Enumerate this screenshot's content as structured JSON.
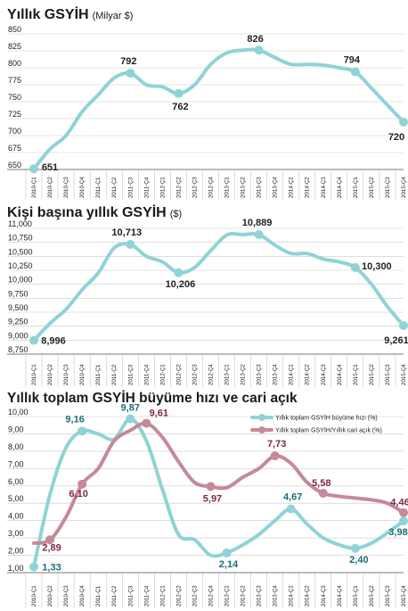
{
  "colors": {
    "teal": "#8fd3d6",
    "mauve": "#c68a97",
    "teal_text": "#1c6d73",
    "mauve_text": "#7a2a44",
    "dark": "#222222"
  },
  "chart_data": [
    {
      "type": "line",
      "title": "Yıllık GSYİH",
      "unit": "(Milyar $)",
      "categories": [
        "2010-Ç1",
        "2010-Ç2",
        "2010-Ç3",
        "2010-Ç4",
        "2011-Ç1",
        "2011-Ç2",
        "2011-Ç3",
        "2011-Ç4",
        "2012-Ç1",
        "2012-Ç2",
        "2012-Ç3",
        "2012-Ç4",
        "2013-Ç1",
        "2013-Ç2",
        "2013-Ç3",
        "2013-Ç4",
        "2014-Ç1",
        "2014-Ç2",
        "2014-Ç3",
        "2014-Ç4",
        "2015-Ç1",
        "2015-Ç2",
        "2015-Ç3",
        "2015-Ç4"
      ],
      "yticks": [
        "850",
        "825",
        "800",
        "775",
        "750",
        "725",
        "700",
        "675",
        "650"
      ],
      "ylim": [
        650,
        850
      ],
      "series": [
        {
          "values": [
            651,
            680,
            700,
            735,
            760,
            785,
            792,
            775,
            772,
            762,
            775,
            805,
            822,
            826,
            826,
            815,
            805,
            805,
            804,
            800,
            794,
            770,
            745,
            720
          ],
          "labeled": {
            "0": "651",
            "6": "792",
            "9": "762",
            "14": "826",
            "20": "794",
            "23": "720"
          }
        }
      ]
    },
    {
      "type": "line",
      "title": "Kişi başına yıllık GSYİH",
      "unit": "($)",
      "categories": [
        "2010-Ç1",
        "2010-Ç2",
        "2010-Ç3",
        "2010-Ç4",
        "2011-Ç1",
        "2011-Ç2",
        "2011-Ç3",
        "2011-Ç4",
        "2012-Ç1",
        "2012-Ç2",
        "2012-Ç3",
        "2012-Ç4",
        "2013-Ç1",
        "2013-Ç2",
        "2013-Ç3",
        "2013-Ç4",
        "2014-Ç1",
        "2014-Ç2",
        "2014-Ç3",
        "2014-Ç4",
        "2015-Ç1",
        "2015-Ç2",
        "2015-Ç3",
        "2015-Ç4"
      ],
      "yticks": [
        "11,000",
        "10,750",
        "10,500",
        "10,250",
        "10,000",
        "9,750",
        "9,500",
        "9,250",
        "9,000",
        "8,750"
      ],
      "ylim": [
        8750,
        11000
      ],
      "series": [
        {
          "values": [
            8996,
            9300,
            9550,
            9900,
            10200,
            10650,
            10713,
            10500,
            10400,
            10206,
            10300,
            10600,
            10880,
            10889,
            10889,
            10700,
            10550,
            10550,
            10450,
            10400,
            10300,
            10000,
            9600,
            9261
          ],
          "labeled": {
            "0": "8,996",
            "6": "10,713",
            "9": "10,206",
            "14": "10,889",
            "20": "10,300",
            "23": "9,261"
          }
        }
      ]
    },
    {
      "type": "line",
      "title": "Yıllık toplam GSYİH büyüme hızı ve cari açık",
      "categories": [
        "2010-Ç1",
        "2010-Ç2",
        "2010-Ç3",
        "2010-Ç4",
        "2011-Ç1",
        "2011-Ç2",
        "2011-Ç3",
        "2011-Ç4",
        "2012-Ç1",
        "2012-Ç2",
        "2012-Ç3",
        "2012-Ç4",
        "2013-Ç1",
        "2013-Ç2",
        "2013-Ç3",
        "2013-Ç4",
        "2014-Ç1",
        "2014-Ç2",
        "2014-Ç3",
        "2014-Ç4",
        "2015-Ç1",
        "2015-Ç2",
        "2015-Ç3",
        "2015-Ç4"
      ],
      "yticks": [
        "10,00",
        "9,00",
        "8,00",
        "7,00",
        "6,00",
        "5,00",
        "4,00",
        "3,00",
        "2,00",
        "1,00"
      ],
      "ylim": [
        1,
        10
      ],
      "legend": [
        "Yıllık toplam GSYİH büyüme hızı (%)",
        "Yıllık toplam GSYİH/Yıllık cari açık (%)"
      ],
      "series": [
        {
          "name": "Yıllık toplam GSYİH büyüme hızı (%)",
          "values": [
            1.33,
            5.5,
            8.2,
            9.16,
            9.0,
            8.7,
            9.87,
            8.6,
            5.8,
            3.2,
            2.9,
            2.0,
            2.14,
            2.6,
            3.2,
            4.0,
            4.67,
            3.8,
            3.0,
            2.6,
            2.4,
            2.7,
            3.3,
            3.98
          ],
          "labeled": {
            "0": "1,33",
            "3": "9,16",
            "6": "9,87",
            "12": "2,14",
            "16": "4,67",
            "20": "2,40",
            "23": "3,98"
          }
        },
        {
          "name": "Yıllık toplam GSYİH/Yıllık cari açık (%)",
          "values": [
            2.7,
            2.89,
            4.2,
            6.1,
            7.0,
            8.6,
            9.2,
            9.61,
            8.8,
            7.4,
            6.2,
            5.97,
            5.9,
            6.5,
            7.0,
            7.73,
            7.3,
            6.2,
            5.58,
            5.4,
            5.3,
            5.2,
            5.0,
            4.46
          ],
          "labeled": {
            "1": "2,89",
            "3": "6,10",
            "7": "9,61",
            "11": "5,97",
            "15": "7,73",
            "18": "5,58",
            "23": "4,46"
          }
        }
      ]
    }
  ]
}
